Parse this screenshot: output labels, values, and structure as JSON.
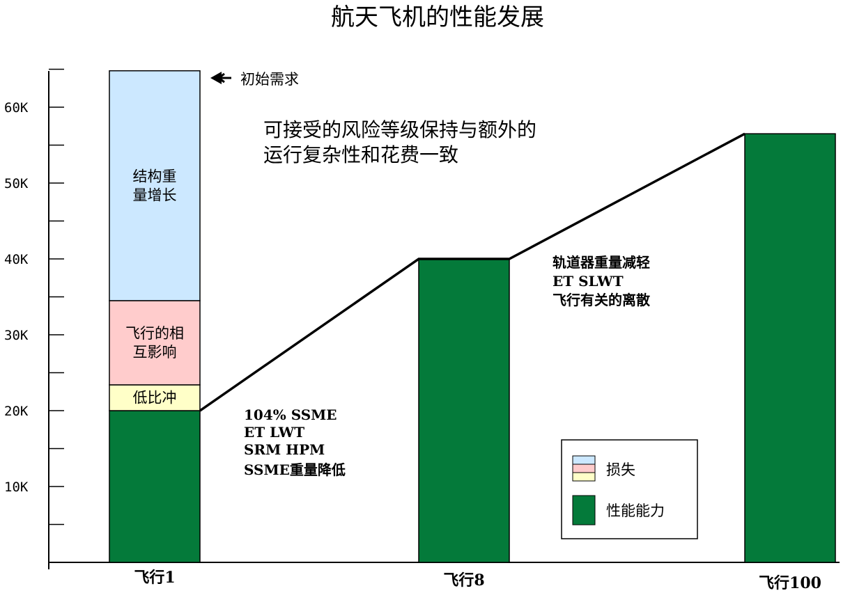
{
  "chart_data": {
    "type": "bar",
    "title": "航天飞机的性能发展",
    "categories": [
      "飞行1",
      "飞行8",
      "飞行100"
    ],
    "ylim": [
      0,
      65
    ],
    "y_ticks": [
      {
        "value": 10,
        "label": "10K"
      },
      {
        "value": 20,
        "label": "20K"
      },
      {
        "value": 30,
        "label": "30K"
      },
      {
        "value": 40,
        "label": "40K"
      },
      {
        "value": 50,
        "label": "50K"
      },
      {
        "value": 60,
        "label": "60K"
      }
    ],
    "y_minor_ticks": [
      5,
      15,
      25,
      35,
      45,
      55,
      65
    ],
    "bars": [
      {
        "category": "飞行1",
        "segments": [
          {
            "label": "",
            "from": 0,
            "to": 20,
            "color": "#047a3a"
          },
          {
            "label": "低比冲",
            "from": 20,
            "to": 23.4,
            "color": "#ffffc8"
          },
          {
            "label": "飞行的相互影响",
            "label_lines": [
              "飞行的相",
              "互影响"
            ],
            "from": 23.4,
            "to": 34.5,
            "color": "#ffcccc"
          },
          {
            "label": "结构重量增长",
            "label_lines": [
              "结构重",
              "量增长"
            ],
            "from": 34.5,
            "to": 64.8,
            "color": "#cce8ff"
          }
        ]
      },
      {
        "category": "飞行8",
        "segments": [
          {
            "label": "",
            "from": 0,
            "to": 40,
            "color": "#047a3a"
          }
        ]
      },
      {
        "category": "飞行100",
        "segments": [
          {
            "label": "",
            "from": 0,
            "to": 56.5,
            "color": "#047a3a"
          }
        ]
      }
    ],
    "trend_line": [
      20,
      40,
      56.5
    ],
    "annotations": {
      "initial_requirement": "初始需求",
      "risk_note": [
        "可接受的风险等级保持与额外的",
        "运行复杂性和花费一致"
      ],
      "flight1_notes": [
        "104% SSME",
        "ET LWT",
        "SRM HPM",
        "SSME重量降低"
      ],
      "flight8_notes": [
        "轨道器重量减轻",
        "ET SLWT",
        "飞行有关的离散"
      ]
    },
    "legend": {
      "placement": "bottom-right",
      "items": [
        {
          "label": "损失",
          "colors": [
            "#cce8ff",
            "#ffcccc",
            "#ffffc8"
          ]
        },
        {
          "label": "性能能力",
          "colors": [
            "#047a3a"
          ]
        }
      ]
    }
  }
}
